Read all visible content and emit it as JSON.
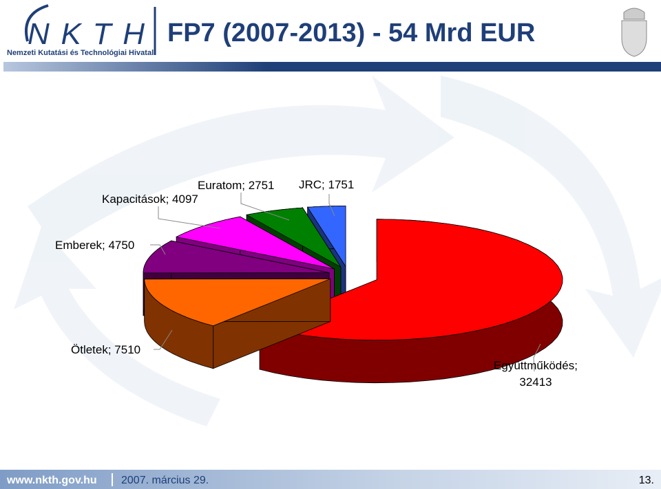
{
  "header": {
    "logo": "NKTH",
    "logo_subtitle": "Nemzeti Kutatási és Technológiai Hivatal",
    "title": "FP7 (2007-2013) - 54 Mrd EUR"
  },
  "chart_data": {
    "type": "pie",
    "values": [
      32413,
      7510,
      4750,
      4097,
      2751,
      1751
    ],
    "value_labels": [
      "Együttműködés; 32413",
      "Ötletek; 7510",
      "Emberek; 4750",
      "Kapacitások; 4097",
      "Euratom; 2751",
      "JRC; 1751"
    ],
    "colors": [
      "#ff0000",
      "#ff6600",
      "#800080",
      "#ff00ff",
      "#008000",
      "#3366ff"
    ],
    "side_colors": [
      "#800000",
      "#803300",
      "#400040",
      "#800080",
      "#004000",
      "#1a3380"
    ]
  },
  "footer": {
    "url": "www.nkth.gov.hu",
    "date": "2007. március 29.",
    "page": "13."
  }
}
